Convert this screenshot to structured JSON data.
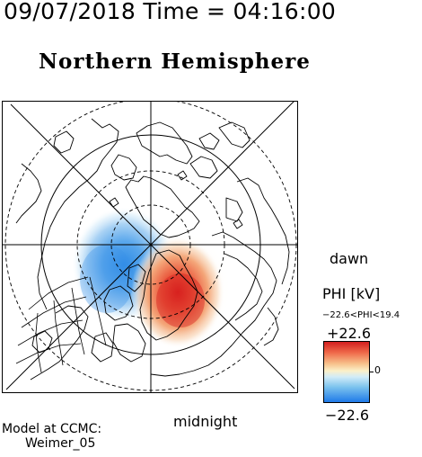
{
  "header": {
    "date": "09/07/2018",
    "time_label": "Time",
    "equals": "=",
    "time": "04:16:00",
    "line": "09/07/2018 Time = 04:16:00"
  },
  "page_title": "Northern Hemisphere",
  "map": {
    "projection": "polar stereographic",
    "labels": {
      "dawn": "dawn",
      "midnight": "midnight"
    }
  },
  "colorbar": {
    "title": "PHI [kV]",
    "range_text": "−22.6<PHI<19.4",
    "max_label": "+22.6",
    "zero_label": "0",
    "min_label": "−22.6",
    "colors": {
      "max": "#d21f1f",
      "mid": "#fbf0c8",
      "min": "#1f7ae8"
    }
  },
  "credits": {
    "line1": "Model at CCMC:",
    "line2": "Weimer_05"
  }
}
